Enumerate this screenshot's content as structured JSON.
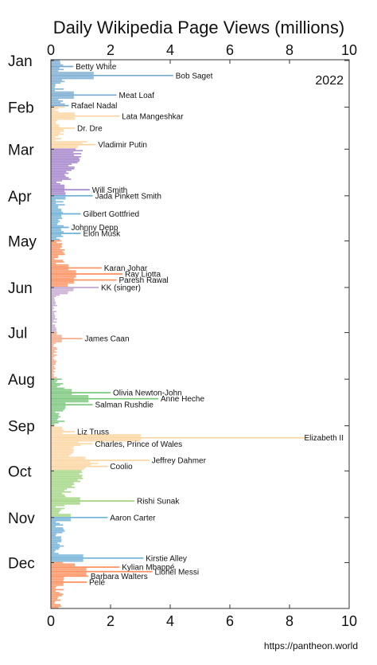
{
  "chart_data": {
    "type": "bar",
    "orientation": "horizontal",
    "title": "Daily Wikipedia Page Views (millions)",
    "year_label": "2022",
    "source": "https://pantheon.world",
    "xlim": [
      0,
      10
    ],
    "x_ticks": [
      "0",
      "2",
      "4",
      "6",
      "8",
      "10"
    ],
    "month_labels": [
      "Jan",
      "Feb",
      "Mar",
      "Apr",
      "May",
      "Jun",
      "Jul",
      "Aug",
      "Sep",
      "Oct",
      "Nov",
      "Dec"
    ],
    "grid": false,
    "colors": {
      "jan": "#74a9cf",
      "feb": "#fdd49e",
      "mar": "#9e7bc7",
      "apr": "#6baed6",
      "may": "#fc8d59",
      "jun": "#c2a5cf",
      "jul": "#f4a582",
      "aug": "#74c476",
      "sep": "#fdd49e",
      "oct": "#9ed37d",
      "nov": "#6baed6",
      "dec": "#fc8d59"
    },
    "annotations": [
      {
        "day": 4,
        "value": 0.75,
        "label": "Betty White"
      },
      {
        "day": 10,
        "value": 4.1,
        "label": "Bob Saget"
      },
      {
        "day": 23,
        "value": 2.2,
        "label": "Meat Loaf"
      },
      {
        "day": 30,
        "value": 0.6,
        "label": "Rafael Nadal"
      },
      {
        "day": 37,
        "value": 2.3,
        "label": "Lata Mangeshkar"
      },
      {
        "day": 45,
        "value": 0.8,
        "label": "Dr. Dre"
      },
      {
        "day": 56,
        "value": 1.5,
        "label": "Vladimir Putin"
      },
      {
        "day": 86,
        "value": 1.3,
        "label": "Will Smith"
      },
      {
        "day": 90,
        "value": 1.4,
        "label": "Jada Pinkett Smith"
      },
      {
        "day": 102,
        "value": 1.0,
        "label": "Gilbert Gottfried"
      },
      {
        "day": 111,
        "value": 0.6,
        "label": "Johnny Depp"
      },
      {
        "day": 115,
        "value": 1.0,
        "label": "Elon Musk"
      },
      {
        "day": 138,
        "value": 1.7,
        "label": "Karan Johar"
      },
      {
        "day": 142,
        "value": 2.4,
        "label": "Ray Liotta"
      },
      {
        "day": 146,
        "value": 2.2,
        "label": "Paresh Rawal"
      },
      {
        "day": 151,
        "value": 1.6,
        "label": "KK (singer)"
      },
      {
        "day": 185,
        "value": 1.05,
        "label": "James Caan"
      },
      {
        "day": 221,
        "value": 2.0,
        "label": "Olivia Newton-John"
      },
      {
        "day": 225,
        "value": 3.6,
        "label": "Anne Heche"
      },
      {
        "day": 229,
        "value": 1.4,
        "label": "Salman Rushdie"
      },
      {
        "day": 247,
        "value": 0.8,
        "label": "Liz Truss"
      },
      {
        "day": 251,
        "value": 8.6,
        "label": "Elizabeth II"
      },
      {
        "day": 255,
        "value": 1.4,
        "label": "Charles, Prince of Wales"
      },
      {
        "day": 266,
        "value": 3.3,
        "label": "Jeffrey Dahmer"
      },
      {
        "day": 270,
        "value": 1.9,
        "label": "Coolio"
      },
      {
        "day": 293,
        "value": 2.8,
        "label": "Rishi Sunak"
      },
      {
        "day": 304,
        "value": 1.9,
        "label": "Aaron Carter"
      },
      {
        "day": 331,
        "value": 3.1,
        "label": "Kirstie Alley"
      },
      {
        "day": 337,
        "value": 2.3,
        "label": "Kylian Mbappé"
      },
      {
        "day": 340,
        "value": 3.4,
        "label": "Lionel Messi"
      },
      {
        "day": 343,
        "value": 1.25,
        "label": "Barbara Walters"
      },
      {
        "day": 347,
        "value": 1.2,
        "label": "Pelé"
      }
    ]
  }
}
